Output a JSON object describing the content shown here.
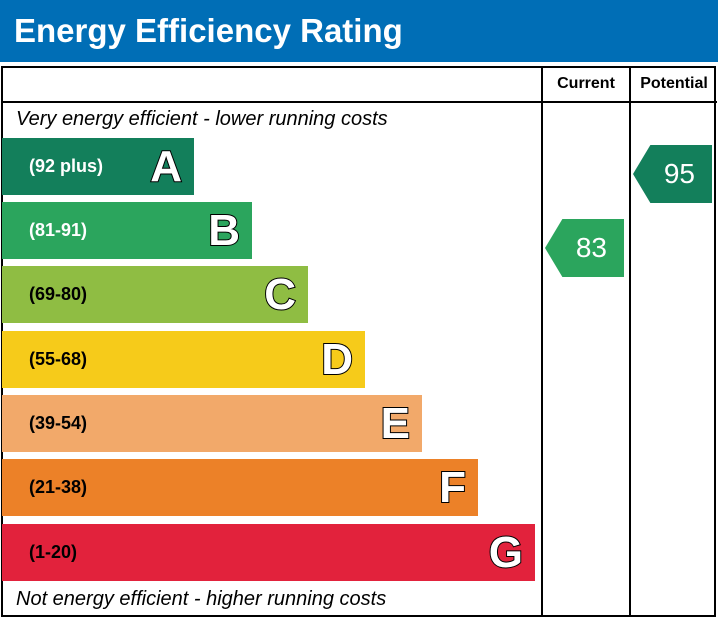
{
  "title": "Energy Efficiency Rating",
  "columns": {
    "current": "Current",
    "potential": "Potential"
  },
  "top_note": "Very energy efficient - lower running costs",
  "bottom_note": "Not energy efficient - higher running costs",
  "chart_data": {
    "type": "bar",
    "bands": [
      {
        "letter": "A",
        "range": "(92 plus)",
        "color": "#137f5b",
        "text_color": "#ffffff"
      },
      {
        "letter": "B",
        "range": "(81-91)",
        "color": "#2ba55d",
        "text_color": "#ffffff"
      },
      {
        "letter": "C",
        "range": "(69-80)",
        "color": "#8fbd43",
        "text_color": "#000000"
      },
      {
        "letter": "D",
        "range": "(55-68)",
        "color": "#f6cb1a",
        "text_color": "#000000"
      },
      {
        "letter": "E",
        "range": "(39-54)",
        "color": "#f2a96a",
        "text_color": "#000000"
      },
      {
        "letter": "F",
        "range": "(21-38)",
        "color": "#ec8128",
        "text_color": "#000000"
      },
      {
        "letter": "G",
        "range": "(1-20)",
        "color": "#e2223c",
        "text_color": "#000000"
      }
    ],
    "current": {
      "value": "83",
      "band": "B",
      "color": "#2ba55d"
    },
    "potential": {
      "value": "95",
      "band": "A",
      "color": "#137f5b"
    }
  }
}
